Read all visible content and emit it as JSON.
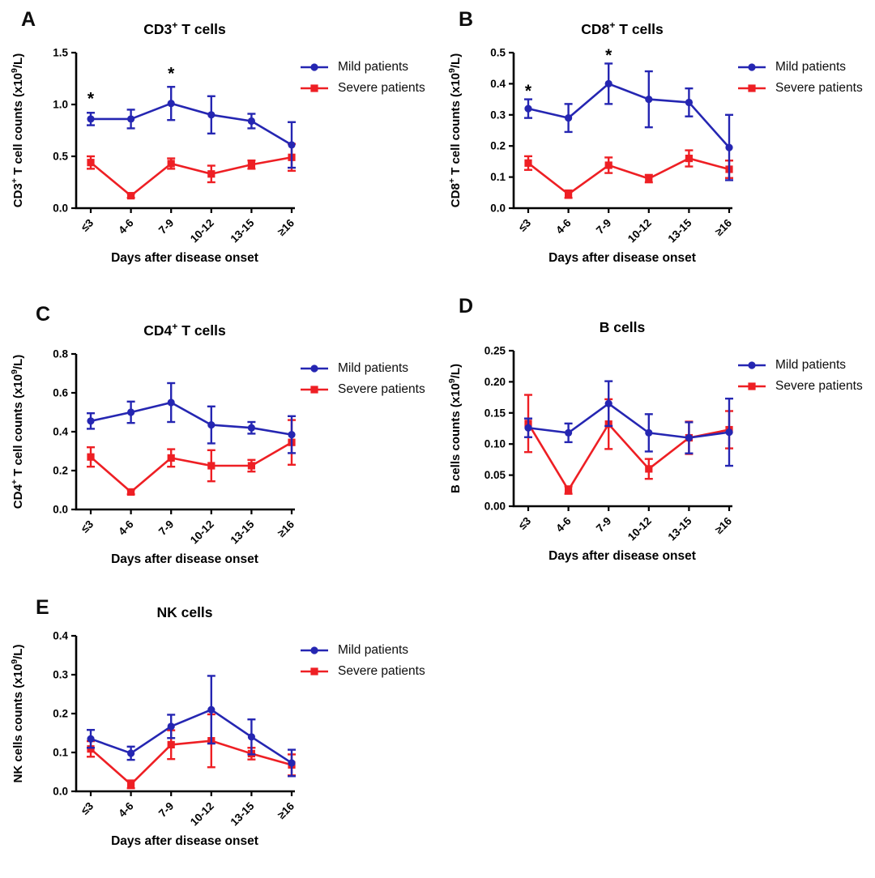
{
  "figure": {
    "background": "#ffffff"
  },
  "legend": {
    "mild": "Mild patients",
    "severe": "Severe patients"
  },
  "colors": {
    "mild": "#2526b2",
    "severe": "#ee1f24",
    "axis": "#000000",
    "text": "#000000"
  },
  "chart_data": [
    {
      "letter": "A",
      "type": "line",
      "title_segments": [
        {
          "t": "CD3"
        },
        {
          "t": "+",
          "sup": true
        },
        {
          "t": " T cells"
        }
      ],
      "ylabel_segments": [
        {
          "t": "CD3"
        },
        {
          "t": "+",
          "sup": true
        },
        {
          "t": " T cell counts (x10"
        },
        {
          "t": "9",
          "sup": true
        },
        {
          "t": "/L)"
        }
      ],
      "xlabel": "Days after disease onset",
      "categories": [
        "≤3",
        "4-6",
        "7-9",
        "10-12",
        "13-15",
        "≥16"
      ],
      "ylim": [
        0,
        1.5
      ],
      "yticks": [
        "0.0",
        "0.5",
        "1.0",
        "1.5"
      ],
      "grid": false,
      "legend_position": "right-top",
      "series": [
        {
          "name": "Mild patients",
          "color_key": "mild",
          "marker": "circle",
          "values": [
            0.86,
            0.86,
            1.01,
            0.9,
            0.84,
            0.61
          ],
          "errors": [
            0.06,
            0.09,
            0.16,
            0.18,
            0.07,
            0.22
          ]
        },
        {
          "name": "Severe patients",
          "color_key": "severe",
          "marker": "square",
          "values": [
            0.44,
            0.12,
            0.43,
            0.33,
            0.42,
            0.49
          ],
          "errors": [
            0.06,
            0.02,
            0.05,
            0.08,
            0.04,
            0.13
          ]
        }
      ],
      "annotations": [
        {
          "x_index": 0,
          "y": 1.06,
          "text": "*"
        },
        {
          "x_index": 2,
          "y": 1.3,
          "text": "*"
        }
      ]
    },
    {
      "letter": "B",
      "type": "line",
      "title_segments": [
        {
          "t": "CD8"
        },
        {
          "t": "+",
          "sup": true
        },
        {
          "t": " T cells"
        }
      ],
      "ylabel_segments": [
        {
          "t": "CD8"
        },
        {
          "t": "+",
          "sup": true
        },
        {
          "t": " T cell counts (x10"
        },
        {
          "t": "9",
          "sup": true
        },
        {
          "t": "/L)"
        }
      ],
      "xlabel": "Days after disease onset",
      "categories": [
        "≤3",
        "4-6",
        "7-9",
        "10-12",
        "13-15",
        "≥16"
      ],
      "ylim": [
        0,
        0.5
      ],
      "yticks": [
        "0.0",
        "0.1",
        "0.2",
        "0.3",
        "0.4",
        "0.5"
      ],
      "grid": false,
      "legend_position": "right-top",
      "series": [
        {
          "name": "Mild patients",
          "color_key": "mild",
          "marker": "circle",
          "values": [
            0.32,
            0.29,
            0.4,
            0.35,
            0.34,
            0.195
          ],
          "errors": [
            0.03,
            0.045,
            0.065,
            0.09,
            0.045,
            0.105
          ]
        },
        {
          "name": "Severe patients",
          "color_key": "severe",
          "marker": "square",
          "values": [
            0.145,
            0.045,
            0.138,
            0.095,
            0.16,
            0.125
          ],
          "errors": [
            0.022,
            0.012,
            0.025,
            0.012,
            0.026,
            0.028
          ]
        }
      ],
      "annotations": [
        {
          "x_index": 0,
          "y": 0.378,
          "text": "*"
        },
        {
          "x_index": 2,
          "y": 0.492,
          "text": "*"
        }
      ]
    },
    {
      "letter": "C",
      "type": "line",
      "title_segments": [
        {
          "t": "CD4"
        },
        {
          "t": "+",
          "sup": true
        },
        {
          "t": " T cells"
        }
      ],
      "ylabel_segments": [
        {
          "t": "CD4"
        },
        {
          "t": "+",
          "sup": true
        },
        {
          "t": " T cell counts (x10"
        },
        {
          "t": "9",
          "sup": true
        },
        {
          "t": "/L)"
        }
      ],
      "xlabel": "Days after disease onset",
      "categories": [
        "≤3",
        "4-6",
        "7-9",
        "10-12",
        "13-15",
        "≥16"
      ],
      "ylim": [
        0,
        0.8
      ],
      "yticks": [
        "0.0",
        "0.2",
        "0.4",
        "0.6",
        "0.8"
      ],
      "grid": false,
      "legend_position": "right-top",
      "series": [
        {
          "name": "Mild patients",
          "color_key": "mild",
          "marker": "circle",
          "values": [
            0.455,
            0.5,
            0.55,
            0.435,
            0.42,
            0.385
          ],
          "errors": [
            0.04,
            0.055,
            0.1,
            0.095,
            0.03,
            0.095
          ]
        },
        {
          "name": "Severe patients",
          "color_key": "severe",
          "marker": "square",
          "values": [
            0.27,
            0.09,
            0.265,
            0.225,
            0.225,
            0.345
          ],
          "errors": [
            0.05,
            0.012,
            0.045,
            0.08,
            0.03,
            0.115
          ]
        }
      ],
      "annotations": []
    },
    {
      "letter": "D",
      "type": "line",
      "title_segments": [
        {
          "t": "B cells"
        }
      ],
      "ylabel_segments": [
        {
          "t": "B cells counts (x10"
        },
        {
          "t": "9",
          "sup": true
        },
        {
          "t": "/L)"
        }
      ],
      "xlabel": "Days after disease onset",
      "categories": [
        "≤3",
        "4-6",
        "7-9",
        "10-12",
        "13-15",
        "≥16"
      ],
      "ylim": [
        0,
        0.25
      ],
      "yticks": [
        "0.00",
        "0.05",
        "0.10",
        "0.15",
        "0.20",
        "0.25"
      ],
      "grid": false,
      "legend_position": "right-top",
      "series": [
        {
          "name": "Mild patients",
          "color_key": "mild",
          "marker": "circle",
          "values": [
            0.126,
            0.118,
            0.165,
            0.118,
            0.11,
            0.119
          ],
          "errors": [
            0.015,
            0.015,
            0.036,
            0.03,
            0.025,
            0.054
          ]
        },
        {
          "name": "Severe patients",
          "color_key": "severe",
          "marker": "square",
          "values": [
            0.133,
            0.026,
            0.132,
            0.06,
            0.11,
            0.123
          ],
          "errors": [
            0.046,
            0.006,
            0.04,
            0.016,
            0.026,
            0.03
          ]
        }
      ],
      "annotations": []
    },
    {
      "letter": "E",
      "type": "line",
      "title_segments": [
        {
          "t": "NK cells"
        }
      ],
      "ylabel_segments": [
        {
          "t": "NK cells counts (x10"
        },
        {
          "t": "9",
          "sup": true
        },
        {
          "t": "/L)"
        }
      ],
      "xlabel": "Days after disease onset",
      "categories": [
        "≤3",
        "4-6",
        "7-9",
        "10-12",
        "13-15",
        "≥16"
      ],
      "ylim": [
        0,
        0.4
      ],
      "yticks": [
        "0.0",
        "0.1",
        "0.2",
        "0.3",
        "0.4"
      ],
      "grid": false,
      "legend_position": "right-top",
      "series": [
        {
          "name": "Mild patients",
          "color_key": "mild",
          "marker": "circle",
          "values": [
            0.135,
            0.098,
            0.167,
            0.21,
            0.14,
            0.073
          ],
          "errors": [
            0.023,
            0.017,
            0.03,
            0.087,
            0.045,
            0.034
          ]
        },
        {
          "name": "Severe patients",
          "color_key": "severe",
          "marker": "square",
          "values": [
            0.109,
            0.018,
            0.12,
            0.13,
            0.097,
            0.068
          ],
          "errors": [
            0.02,
            0.01,
            0.037,
            0.068,
            0.015,
            0.027
          ]
        }
      ],
      "annotations": []
    }
  ]
}
